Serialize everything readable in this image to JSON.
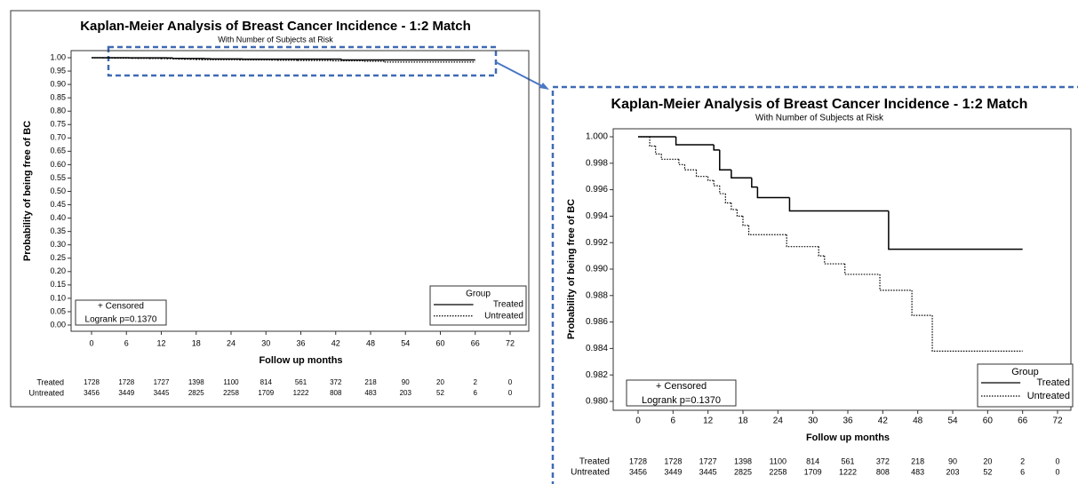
{
  "chart_data": [
    {
      "type": "step",
      "title": "Kaplan-Meier Analysis of Breast Cancer Incidence - 1:2 Match",
      "subtitle": "With Number of Subjects at Risk",
      "x_label": "Follow up months",
      "y_label": "Probability of being free of BC",
      "xlim": [
        0,
        72
      ],
      "xticks": [
        0,
        6,
        12,
        18,
        24,
        30,
        36,
        42,
        48,
        54,
        60,
        66,
        72
      ],
      "ylim": [
        0,
        1
      ],
      "yticks": [
        {
          "value": 0,
          "label": "0.00"
        },
        {
          "value": 0.05,
          "label": "0.05"
        },
        {
          "value": 0.1,
          "label": "0.10"
        },
        {
          "value": 0.15,
          "label": "0.15"
        },
        {
          "value": 0.2,
          "label": "0.20"
        },
        {
          "value": 0.25,
          "label": "0.25"
        },
        {
          "value": 0.3,
          "label": "0.30"
        },
        {
          "value": 0.35,
          "label": "0.35"
        },
        {
          "value": 0.4,
          "label": "0.40"
        },
        {
          "value": 0.45,
          "label": "0.45"
        },
        {
          "value": 0.5,
          "label": "0.50"
        },
        {
          "value": 0.55,
          "label": "0.55"
        },
        {
          "value": 0.6,
          "label": "0.60"
        },
        {
          "value": 0.65,
          "label": "0.65"
        },
        {
          "value": 0.7,
          "label": "0.70"
        },
        {
          "value": 0.75,
          "label": "0.75"
        },
        {
          "value": 0.8,
          "label": "0.80"
        },
        {
          "value": 0.85,
          "label": "0.85"
        },
        {
          "value": 0.9,
          "label": "0.90"
        },
        {
          "value": 0.95,
          "label": "0.95"
        },
        {
          "value": 1,
          "label": "1.00"
        }
      ],
      "legend_title": "Group",
      "legend": "lower right",
      "annotations": [
        "+ Censored",
        "Logrank p=0.1370"
      ],
      "series": [
        {
          "name": "Treated",
          "color": "#000000",
          "dash": "solid",
          "x": [
            0,
            6.5,
            13,
            14,
            16,
            19.5,
            20.5,
            26,
            43,
            66
          ],
          "values": [
            1,
            0.9994,
            0.999,
            0.9975,
            0.9969,
            0.9962,
            0.9954,
            0.9944,
            0.9915,
            0.9915
          ]
        },
        {
          "name": "Untreated",
          "color": "#000000",
          "dash": "dotted",
          "x": [
            0,
            2,
            3,
            4,
            7,
            8,
            10,
            12,
            13,
            14,
            15,
            16,
            17,
            18,
            19,
            25.5,
            31,
            32,
            35.5,
            41.5,
            47,
            50.5,
            66
          ],
          "values": [
            1,
            0.9993,
            0.9987,
            0.9983,
            0.9979,
            0.9975,
            0.997,
            0.9967,
            0.9963,
            0.9957,
            0.995,
            0.9945,
            0.994,
            0.9933,
            0.9926,
            0.9917,
            0.991,
            0.9904,
            0.9896,
            0.9884,
            0.9865,
            0.9838,
            0.9838
          ]
        }
      ],
      "at_risk": [
        {
          "name": "Treated",
          "values": [
            1728,
            1728,
            1727,
            1398,
            1100,
            814,
            561,
            372,
            218,
            90,
            20,
            2,
            0
          ]
        },
        {
          "name": "Untreated",
          "values": [
            3456,
            3449,
            3445,
            2825,
            2258,
            1709,
            1222,
            808,
            483,
            203,
            52,
            6,
            0
          ]
        }
      ]
    },
    {
      "type": "step",
      "title": "Kaplan-Meier Analysis of Breast Cancer Incidence - 1:2 Match",
      "subtitle": "With Number of Subjects at Risk",
      "x_label": "Follow up months",
      "y_label": "Probability of being free of BC",
      "xlim": [
        0,
        72
      ],
      "xticks": [
        0,
        6,
        12,
        18,
        24,
        30,
        36,
        42,
        48,
        54,
        60,
        66,
        72
      ],
      "ylim": [
        0.98,
        1
      ],
      "yticks": [
        {
          "value": 0.98,
          "label": "0.980"
        },
        {
          "value": 0.982,
          "label": "0.982"
        },
        {
          "value": 0.984,
          "label": "0.984"
        },
        {
          "value": 0.986,
          "label": "0.986"
        },
        {
          "value": 0.988,
          "label": "0.988"
        },
        {
          "value": 0.99,
          "label": "0.990"
        },
        {
          "value": 0.992,
          "label": "0.992"
        },
        {
          "value": 0.994,
          "label": "0.994"
        },
        {
          "value": 0.996,
          "label": "0.996"
        },
        {
          "value": 0.998,
          "label": "0.998"
        },
        {
          "value": 1,
          "label": "1.000"
        }
      ],
      "legend_title": "Group",
      "legend": "lower right",
      "annotations": [
        "+ Censored",
        "Logrank p=0.1370"
      ],
      "series": [
        {
          "name": "Treated",
          "color": "#000000",
          "dash": "solid",
          "x": [
            0,
            6.5,
            13,
            14,
            16,
            19.5,
            20.5,
            26,
            43,
            66
          ],
          "values": [
            1,
            0.9994,
            0.999,
            0.9975,
            0.9969,
            0.9962,
            0.9954,
            0.9944,
            0.9915,
            0.9915
          ]
        },
        {
          "name": "Untreated",
          "color": "#000000",
          "dash": "dotted",
          "x": [
            0,
            2,
            3,
            4,
            7,
            8,
            10,
            12,
            13,
            14,
            15,
            16,
            17,
            18,
            19,
            25.5,
            31,
            32,
            35.5,
            41.5,
            47,
            50.5,
            66
          ],
          "values": [
            1,
            0.9993,
            0.9987,
            0.9983,
            0.9979,
            0.9975,
            0.997,
            0.9967,
            0.9963,
            0.9957,
            0.995,
            0.9945,
            0.994,
            0.9933,
            0.9926,
            0.9917,
            0.991,
            0.9904,
            0.9896,
            0.9884,
            0.9865,
            0.9838,
            0.9838
          ]
        }
      ],
      "at_risk": [
        {
          "name": "Treated",
          "values": [
            1728,
            1728,
            1727,
            1398,
            1100,
            814,
            561,
            372,
            218,
            90,
            20,
            2,
            0
          ]
        },
        {
          "name": "Untreated",
          "values": [
            3456,
            3449,
            3445,
            2825,
            2258,
            1709,
            1222,
            808,
            483,
            203,
            52,
            6,
            0
          ]
        }
      ]
    }
  ]
}
